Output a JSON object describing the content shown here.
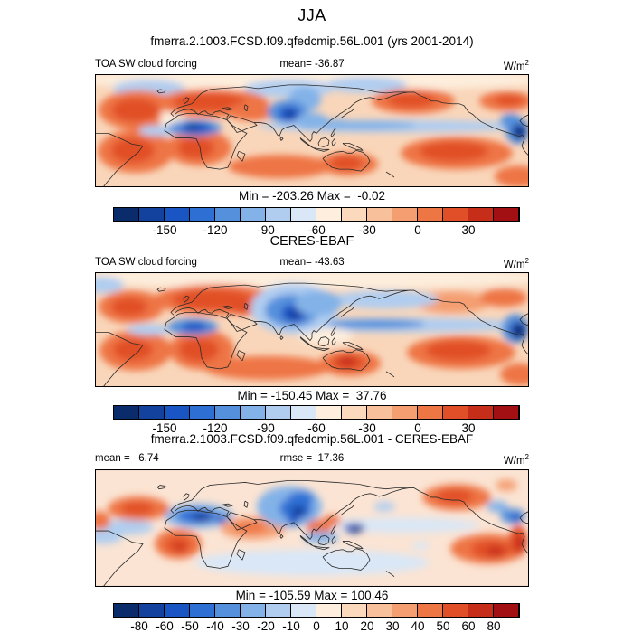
{
  "title": "JJA",
  "subtitle": "fmerra.2.1003.FCSD.f09.qfedcmip.56L.001 (yrs 2001-2014)",
  "panels": [
    {
      "title": "fmerra.2.1003.FCSD.f09.qfedcmip.56L.001 (yrs 2001-2014)",
      "header_left": "TOA SW cloud forcing",
      "header_center": "mean= -36.87",
      "units": "W/m",
      "units_exp": "2",
      "minmax": "Min = -203.26 Max =  -0.02",
      "cb_tick_labels": [
        "-150",
        "-120",
        "-90",
        "-60",
        "-30",
        "0",
        "30"
      ]
    },
    {
      "title": "CERES-EBAF",
      "header_left": "TOA SW cloud forcing",
      "header_center": "mean= -43.63",
      "units": "W/m",
      "units_exp": "2",
      "minmax": "Min = -150.45 Max =  37.76",
      "cb_tick_labels": [
        "-150",
        "-120",
        "-90",
        "-60",
        "-30",
        "0",
        "30"
      ]
    },
    {
      "title": "fmerra.2.1003.FCSD.f09.qfedcmip.56L.001 - CERES-EBAF",
      "header_left": "mean =   6.74",
      "header_center": "rmse =  17.36",
      "units": "W/m",
      "units_exp": "2",
      "minmax": "Min = -105.59 Max = 100.46",
      "cb_tick_labels": [
        "-80",
        "-60",
        "-50",
        "-40",
        "-30",
        "-20",
        "-10",
        "0",
        "10",
        "20",
        "30",
        "40",
        "50",
        "60",
        "80"
      ]
    }
  ],
  "chart_data": [
    {
      "type": "heatmap",
      "subtype": "global-map-filled-contour",
      "season": "JJA",
      "panel": "model",
      "title": "fmerra.2.1003.FCSD.f09.qfedcmip.56L.001 (yrs 2001-2014)",
      "variable": "TOA SW cloud forcing",
      "units": "W/m2",
      "stats": {
        "mean": -36.87,
        "min": -203.26,
        "max": -0.02
      },
      "colorbar": {
        "levels": [
          -165,
          -150,
          -135,
          -120,
          -105,
          -90,
          -75,
          -60,
          -45,
          -30,
          -15,
          0,
          15,
          30,
          45
        ],
        "ticks": [
          -150,
          -120,
          -90,
          -60,
          -30,
          0,
          30
        ]
      }
    },
    {
      "type": "heatmap",
      "subtype": "global-map-filled-contour",
      "season": "JJA",
      "panel": "observations",
      "title": "CERES-EBAF",
      "variable": "TOA SW cloud forcing",
      "units": "W/m2",
      "stats": {
        "mean": -43.63,
        "min": -150.45,
        "max": 37.76
      },
      "colorbar": {
        "levels": [
          -165,
          -150,
          -135,
          -120,
          -105,
          -90,
          -75,
          -60,
          -45,
          -30,
          -15,
          0,
          15,
          30,
          45
        ],
        "ticks": [
          -150,
          -120,
          -90,
          -60,
          -30,
          0,
          30
        ]
      }
    },
    {
      "type": "heatmap",
      "subtype": "global-map-filled-contour-difference",
      "season": "JJA",
      "panel": "model-minus-observations",
      "title": "fmerra.2.1003.FCSD.f09.qfedcmip.56L.001 - CERES-EBAF",
      "variable": "TOA SW cloud forcing",
      "units": "W/m2",
      "stats": {
        "mean": 6.74,
        "rmse": 17.36,
        "min": -105.59,
        "max": 100.46
      },
      "colorbar": {
        "levels": [
          -80,
          -60,
          -50,
          -40,
          -30,
          -20,
          -10,
          0,
          10,
          20,
          30,
          40,
          50,
          60,
          80
        ],
        "ticks": [
          -80,
          -60,
          -50,
          -40,
          -30,
          -20,
          -10,
          0,
          10,
          20,
          30,
          40,
          50,
          60,
          80
        ]
      }
    }
  ],
  "colors": {
    "background": "#ffffff",
    "coastline": "#2b2b2b",
    "map_border": "#000000",
    "palette": [
      "#0b2c6b",
      "#12419e",
      "#1a55c4",
      "#2e6fd4",
      "#5590dc",
      "#83b2e8",
      "#b0cdf0",
      "#d9e7f7",
      "#fdeedd",
      "#fbd9bd",
      "#f8c19b",
      "#f49e71",
      "#ee7544",
      "#e14f28",
      "#c72e1a",
      "#a31013"
    ]
  }
}
